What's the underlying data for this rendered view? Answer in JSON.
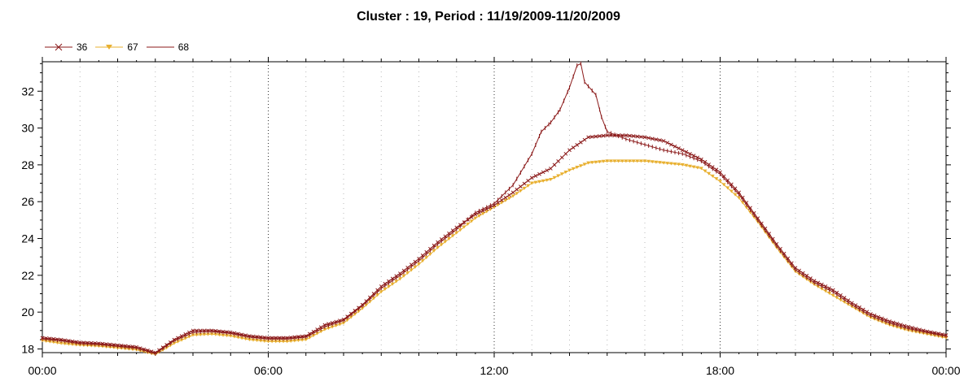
{
  "chart_data": {
    "type": "line",
    "title": "Cluster : 19, Period : 11/19/2009-11/20/2009",
    "xlabel": "",
    "ylabel": "",
    "x_ticks": [
      "00:00",
      "06:00",
      "12:00",
      "18:00",
      "00:00"
    ],
    "y_ticks": [
      18,
      20,
      22,
      24,
      26,
      28,
      30,
      32
    ],
    "xlim_hours": [
      0,
      24
    ],
    "ylim": [
      17.8,
      33.6
    ],
    "grid": "dotted",
    "legend_position": "top-left",
    "series": [
      {
        "name": "36",
        "color": "#8b1a1a",
        "marker": "x",
        "points": [
          [
            0,
            18.6
          ],
          [
            0.5,
            18.5
          ],
          [
            1,
            18.35
          ],
          [
            1.5,
            18.3
          ],
          [
            2,
            18.2
          ],
          [
            2.5,
            18.1
          ],
          [
            3,
            17.8
          ],
          [
            3.5,
            18.5
          ],
          [
            4,
            19.0
          ],
          [
            4.5,
            19.0
          ],
          [
            5,
            18.9
          ],
          [
            5.5,
            18.7
          ],
          [
            6,
            18.6
          ],
          [
            6.5,
            18.6
          ],
          [
            7,
            18.7
          ],
          [
            7.5,
            19.3
          ],
          [
            8,
            19.6
          ],
          [
            8.5,
            20.4
          ],
          [
            9,
            21.4
          ],
          [
            9.5,
            22.1
          ],
          [
            10,
            22.9
          ],
          [
            10.5,
            23.8
          ],
          [
            11,
            24.6
          ],
          [
            11.5,
            25.3
          ],
          [
            12,
            25.8
          ],
          [
            12.5,
            26.5
          ],
          [
            13,
            27.3
          ],
          [
            13.5,
            27.8
          ],
          [
            14,
            28.8
          ],
          [
            14.5,
            29.5
          ],
          [
            15,
            29.6
          ],
          [
            15.5,
            29.6
          ],
          [
            16,
            29.5
          ],
          [
            16.5,
            29.3
          ],
          [
            17,
            28.8
          ],
          [
            17.5,
            28.3
          ],
          [
            18,
            27.6
          ],
          [
            18.5,
            26.5
          ],
          [
            19,
            25.1
          ],
          [
            19.5,
            23.7
          ],
          [
            20,
            22.4
          ],
          [
            20.5,
            21.7
          ],
          [
            21,
            21.2
          ],
          [
            21.5,
            20.5
          ],
          [
            22,
            19.9
          ],
          [
            22.5,
            19.5
          ],
          [
            23,
            19.2
          ],
          [
            23.5,
            18.95
          ],
          [
            24,
            18.75
          ]
        ]
      },
      {
        "name": "67",
        "color": "#e8b030",
        "marker": "triangle-down",
        "points": [
          [
            0,
            18.45
          ],
          [
            0.5,
            18.3
          ],
          [
            1,
            18.2
          ],
          [
            1.5,
            18.15
          ],
          [
            2,
            18.05
          ],
          [
            2.5,
            17.95
          ],
          [
            3,
            17.7
          ],
          [
            3.5,
            18.3
          ],
          [
            4,
            18.75
          ],
          [
            4.5,
            18.8
          ],
          [
            5,
            18.7
          ],
          [
            5.5,
            18.5
          ],
          [
            6,
            18.4
          ],
          [
            6.5,
            18.4
          ],
          [
            7,
            18.5
          ],
          [
            7.5,
            19.05
          ],
          [
            8,
            19.4
          ],
          [
            8.5,
            20.2
          ],
          [
            9,
            21.1
          ],
          [
            9.5,
            21.8
          ],
          [
            10,
            22.6
          ],
          [
            10.5,
            23.5
          ],
          [
            11,
            24.3
          ],
          [
            11.5,
            25.1
          ],
          [
            12,
            25.7
          ],
          [
            12.5,
            26.3
          ],
          [
            13,
            27.0
          ],
          [
            13.5,
            27.2
          ],
          [
            14,
            27.7
          ],
          [
            14.5,
            28.1
          ],
          [
            15,
            28.2
          ],
          [
            15.5,
            28.2
          ],
          [
            16,
            28.2
          ],
          [
            16.5,
            28.1
          ],
          [
            17,
            28.0
          ],
          [
            17.5,
            27.8
          ],
          [
            18,
            27.1
          ],
          [
            18.5,
            26.2
          ],
          [
            19,
            24.9
          ],
          [
            19.5,
            23.5
          ],
          [
            20,
            22.2
          ],
          [
            20.5,
            21.5
          ],
          [
            21,
            20.9
          ],
          [
            21.5,
            20.3
          ],
          [
            22,
            19.7
          ],
          [
            22.5,
            19.3
          ],
          [
            23,
            19.0
          ],
          [
            23.5,
            18.8
          ],
          [
            24,
            18.6
          ]
        ]
      },
      {
        "name": "68",
        "color": "#8b1a1a",
        "marker": "plus",
        "points": [
          [
            0,
            18.55
          ],
          [
            0.5,
            18.45
          ],
          [
            1,
            18.3
          ],
          [
            1.5,
            18.25
          ],
          [
            2,
            18.15
          ],
          [
            2.5,
            18.05
          ],
          [
            3,
            17.75
          ],
          [
            3.5,
            18.45
          ],
          [
            4,
            18.9
          ],
          [
            4.5,
            18.95
          ],
          [
            5,
            18.85
          ],
          [
            5.5,
            18.65
          ],
          [
            6,
            18.55
          ],
          [
            6.5,
            18.55
          ],
          [
            7,
            18.65
          ],
          [
            7.5,
            19.2
          ],
          [
            8,
            19.55
          ],
          [
            8.5,
            20.35
          ],
          [
            9,
            21.3
          ],
          [
            9.5,
            22.0
          ],
          [
            10,
            22.8
          ],
          [
            10.5,
            23.7
          ],
          [
            11,
            24.5
          ],
          [
            11.5,
            25.4
          ],
          [
            12,
            25.9
          ],
          [
            12.5,
            26.9
          ],
          [
            13,
            28.6
          ],
          [
            13.25,
            29.8
          ],
          [
            13.5,
            30.3
          ],
          [
            13.75,
            31.0
          ],
          [
            14,
            32.2
          ],
          [
            14.2,
            33.4
          ],
          [
            14.3,
            33.5
          ],
          [
            14.4,
            32.5
          ],
          [
            14.7,
            31.8
          ],
          [
            14.85,
            30.6
          ],
          [
            15,
            29.8
          ],
          [
            15.5,
            29.4
          ],
          [
            16,
            29.1
          ],
          [
            16.5,
            28.8
          ],
          [
            17,
            28.6
          ],
          [
            17.5,
            28.2
          ],
          [
            18,
            27.5
          ],
          [
            18.5,
            26.4
          ],
          [
            19,
            25.0
          ],
          [
            19.5,
            23.6
          ],
          [
            20,
            22.3
          ],
          [
            20.5,
            21.6
          ],
          [
            21,
            21.1
          ],
          [
            21.5,
            20.4
          ],
          [
            22,
            19.8
          ],
          [
            22.5,
            19.4
          ],
          [
            23,
            19.1
          ],
          [
            23.5,
            18.9
          ],
          [
            24,
            18.7
          ]
        ]
      }
    ]
  }
}
